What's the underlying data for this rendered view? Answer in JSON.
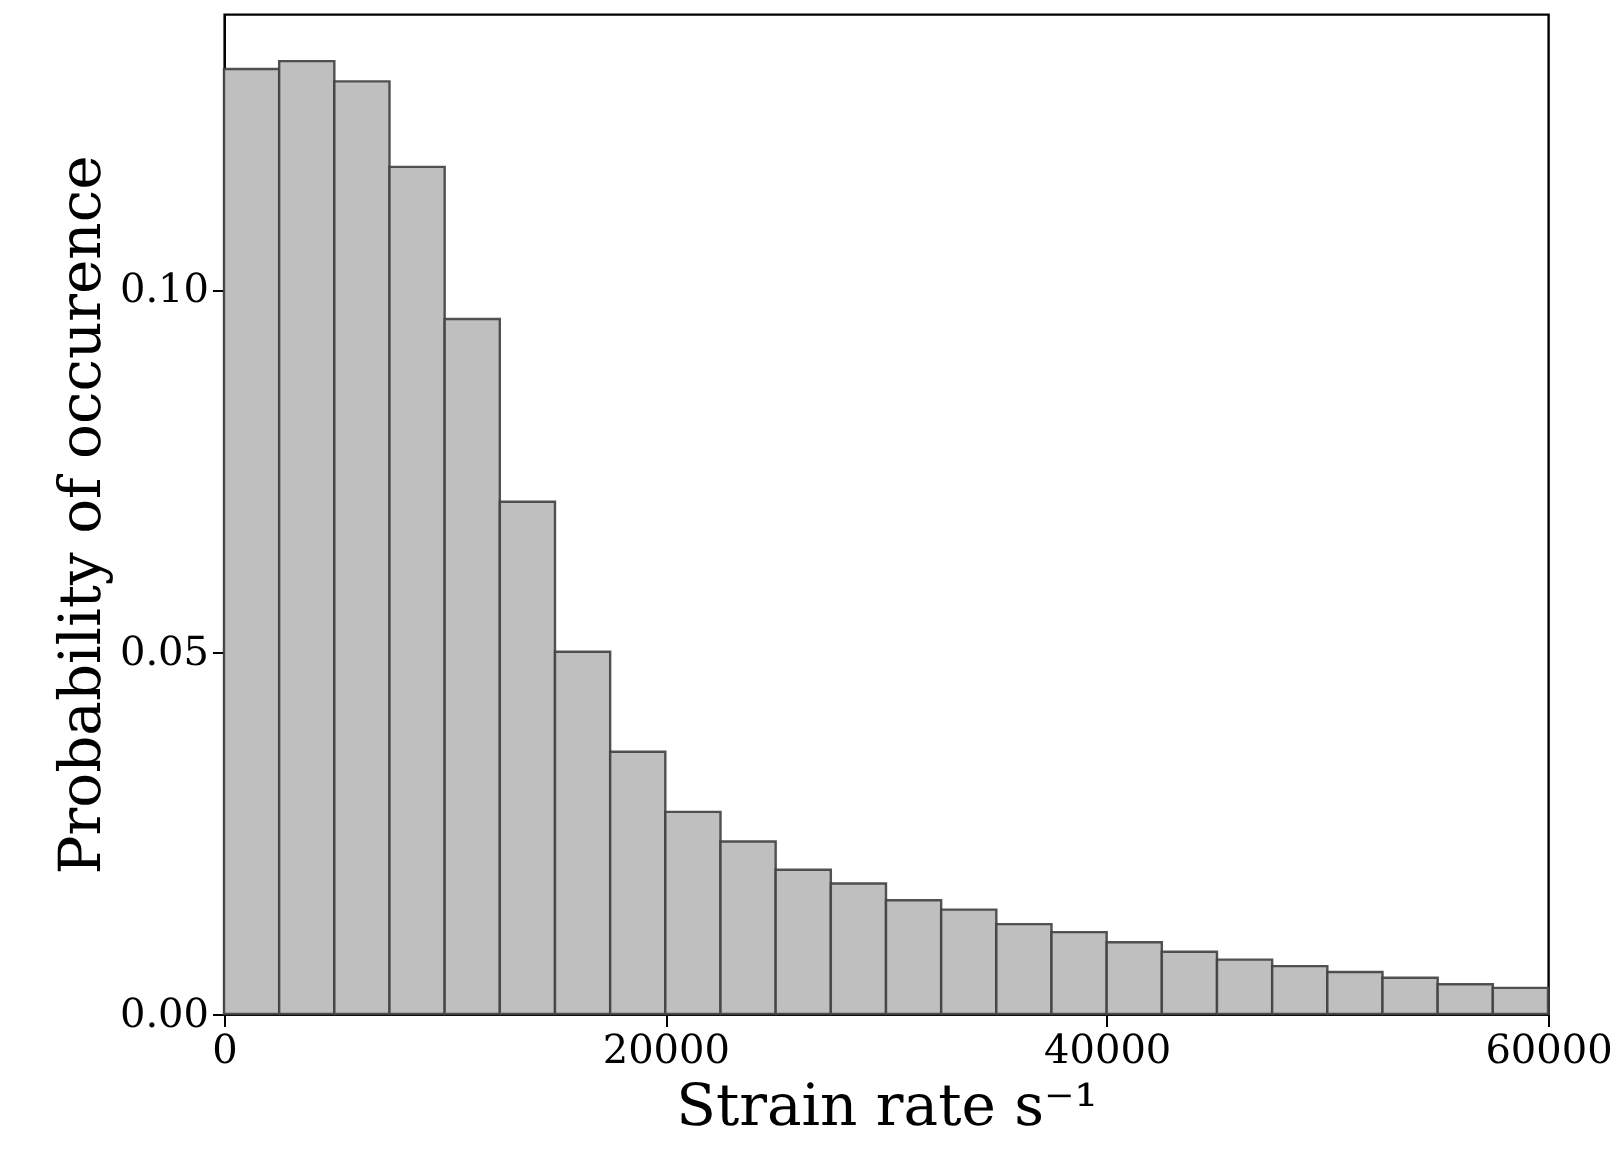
{
  "chart_data": {
    "type": "histogram",
    "xlabel": "Strain rate s⁻¹",
    "ylabel": "Probability of occurence",
    "bins": [
      0,
      2500,
      5000,
      7500,
      10000,
      12500,
      15000,
      17500,
      20000,
      22500,
      25000,
      27500,
      30000,
      32500,
      35000,
      37500,
      40000,
      42500,
      45000,
      47500,
      50000,
      52500,
      55000,
      57500,
      60000
    ],
    "values": [
      0.1304,
      0.1315,
      0.1287,
      0.1169,
      0.0959,
      0.0707,
      0.05,
      0.0362,
      0.0279,
      0.0238,
      0.0199,
      0.018,
      0.0157,
      0.0144,
      0.0124,
      0.0113,
      0.0099,
      0.0086,
      0.0075,
      0.0066,
      0.0058,
      0.005,
      0.0041,
      0.0036
    ],
    "color": "#bfbfbf",
    "xlim": [
      0,
      60000
    ],
    "xticks": [
      0,
      20000,
      40000,
      60000
    ],
    "ylim": [
      0,
      0.138
    ],
    "yticks": [
      {
        "value": 0,
        "label": "0.00"
      },
      {
        "value": 0.05,
        "label": "0.05"
      },
      {
        "value": 0.1,
        "label": "0.10"
      }
    ],
    "grid": false
  }
}
